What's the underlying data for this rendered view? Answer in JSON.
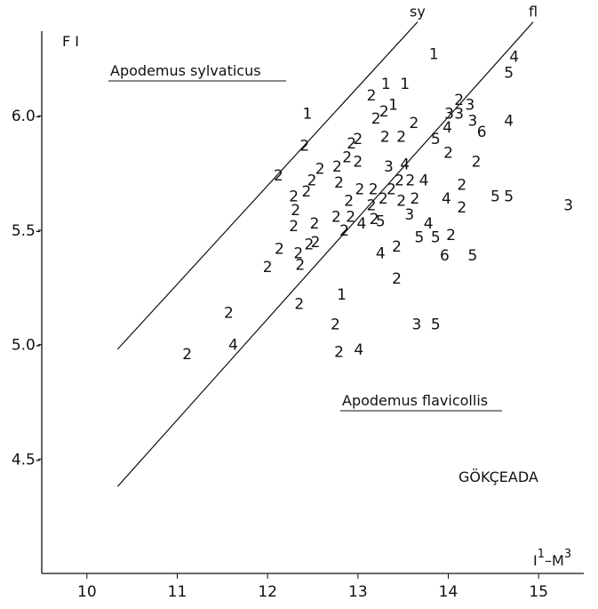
{
  "chart_data": {
    "type": "scatter",
    "ylabel": "F I",
    "xlabel": [
      "I",
      "1",
      "–M",
      "3"
    ],
    "annotations": [
      "Apodemus  sylvaticus",
      "Apodemus  flavicollis",
      "GÖKÇEADA"
    ],
    "xlim": [
      9.5,
      15.5
    ],
    "ylim": [
      4.0,
      6.37
    ],
    "xticks": [
      10,
      11,
      12,
      13,
      14,
      15
    ],
    "yticks": [
      {
        "value": 4.5,
        "label": "4.5-"
      },
      {
        "value": 5.0,
        "label": "5.0-"
      },
      {
        "value": 5.5,
        "label": "5.5-"
      },
      {
        "value": 6.0,
        "label": "6.0-"
      }
    ],
    "color": "#111111",
    "lines": [
      {
        "name": "sy",
        "x": [
          10.34,
          13.66
        ],
        "y": [
          4.98,
          6.41
        ]
      },
      {
        "name": "fl",
        "x": [
          10.34,
          14.94
        ],
        "y": [
          4.38,
          6.41
        ]
      }
    ],
    "x": [
      11.11,
      11.62,
      11.57,
      12.35,
      12.0,
      12.13,
      12.36,
      12.34,
      12.46,
      12.53,
      12.52,
      12.29,
      12.31,
      12.29,
      12.43,
      12.49,
      12.58,
      12.12,
      12.41,
      12.44,
      12.77,
      12.88,
      12.93,
      13.0,
      13.0,
      12.79,
      12.9,
      12.76,
      12.92,
      12.85,
      13.02,
      13.04,
      13.17,
      13.15,
      13.18,
      13.25,
      13.28,
      13.37,
      13.34,
      13.52,
      13.46,
      13.58,
      13.73,
      13.48,
      13.63,
      13.57,
      13.78,
      13.68,
      13.86,
      14.03,
      13.25,
      13.43,
      13.43,
      13.96,
      14.27,
      12.82,
      12.75,
      12.79,
      13.01,
      13.65,
      13.86,
      13.15,
      13.31,
      13.52,
      13.29,
      13.39,
      13.2,
      13.3,
      13.48,
      13.62,
      13.84,
      13.86,
      13.99,
      14.01,
      14.12,
      14.12,
      14.24,
      14.27,
      14.37,
      14.0,
      14.31,
      13.98,
      14.15,
      14.15,
      14.52,
      14.67,
      14.67,
      14.67,
      14.73,
      15.33
    ],
    "values": [
      4.96,
      5.0,
      5.14,
      5.18,
      5.34,
      5.42,
      5.35,
      5.4,
      5.44,
      5.45,
      5.53,
      5.52,
      5.59,
      5.65,
      5.67,
      5.72,
      5.77,
      5.74,
      5.87,
      6.01,
      5.78,
      5.82,
      5.88,
      5.9,
      5.8,
      5.71,
      5.63,
      5.56,
      5.56,
      5.5,
      5.68,
      5.53,
      5.68,
      5.61,
      5.55,
      5.54,
      5.64,
      5.68,
      5.78,
      5.79,
      5.72,
      5.72,
      5.72,
      5.63,
      5.64,
      5.57,
      5.53,
      5.47,
      5.47,
      5.48,
      5.4,
      5.43,
      5.29,
      5.39,
      5.39,
      5.22,
      5.09,
      4.97,
      4.98,
      5.09,
      5.09,
      6.09,
      6.14,
      6.14,
      6.02,
      6.05,
      5.99,
      5.91,
      5.91,
      5.97,
      6.27,
      5.9,
      5.95,
      6.01,
      6.01,
      6.07,
      6.05,
      5.98,
      5.93,
      5.84,
      5.8,
      5.64,
      5.7,
      5.6,
      5.65,
      5.65,
      5.98,
      6.19,
      6.26,
      5.61
    ],
    "labels": [
      "2",
      "4",
      "2",
      "2",
      "2",
      "2",
      "2",
      "2",
      "2",
      "2",
      "2",
      "2",
      "2",
      "2",
      "2",
      "2",
      "2",
      "2",
      "2",
      "1",
      "2",
      "2",
      "2",
      "2",
      "2",
      "2",
      "2",
      "2",
      "2",
      "2",
      "2",
      "4",
      "2",
      "2",
      "2",
      "5",
      "2",
      "2",
      "3",
      "4",
      "2",
      "2",
      "4",
      "2",
      "2",
      "3",
      "4",
      "5",
      "5",
      "2",
      "4",
      "2",
      "2",
      "6",
      "5",
      "1",
      "2",
      "2",
      "4",
      "3",
      "5",
      "2",
      "1",
      "1",
      "2",
      "1",
      "2",
      "2",
      "2",
      "2",
      "1",
      "5",
      "4",
      "3",
      "3",
      "2",
      "3",
      "3",
      "6",
      "2",
      "2",
      "4",
      "2",
      "2",
      "5",
      "5",
      "4",
      "5",
      "4",
      "3"
    ]
  }
}
